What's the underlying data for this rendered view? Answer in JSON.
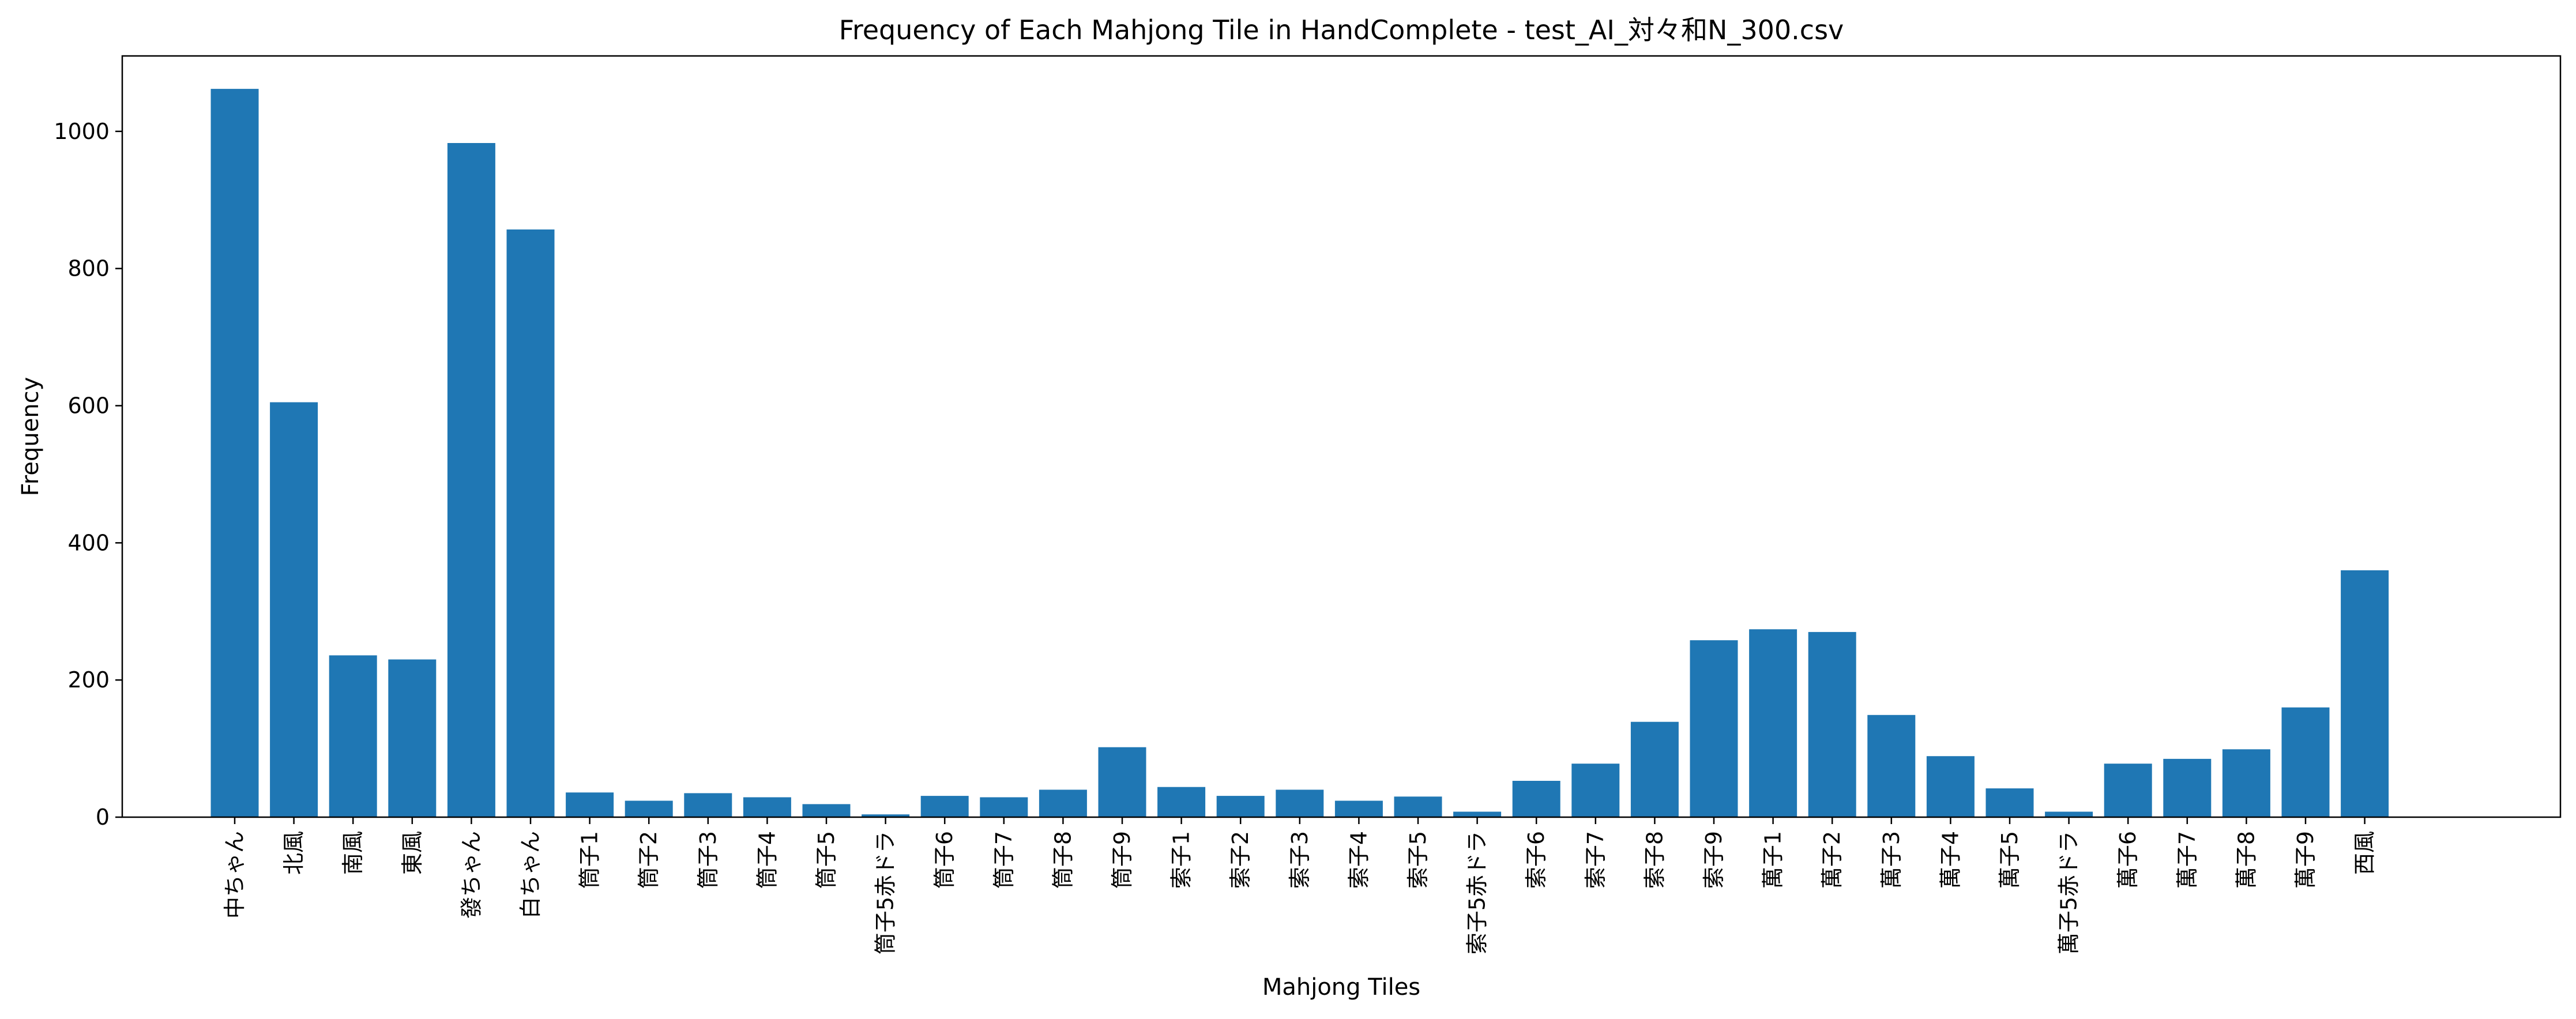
{
  "chart_data": {
    "type": "bar",
    "title": "Frequency of Each Mahjong Tile in HandComplete - test_AI_対々和N_300.csv",
    "xlabel": "Mahjong Tiles",
    "ylabel": "Frequency",
    "ylim": [
      0,
      1110
    ],
    "yticks": [
      0,
      200,
      400,
      600,
      800,
      1000
    ],
    "grid": false,
    "legend": "none",
    "bar_color": "#1f77b4",
    "categories": [
      "中ちゃん",
      "北風",
      "南風",
      "東風",
      "發ちゃん",
      "白ちゃん",
      "筒子1",
      "筒子2",
      "筒子3",
      "筒子4",
      "筒子5",
      "筒子5赤ドラ",
      "筒子6",
      "筒子7",
      "筒子8",
      "筒子9",
      "索子1",
      "索子2",
      "索子3",
      "索子4",
      "索子5",
      "索子5赤ドラ",
      "索子6",
      "索子7",
      "索子8",
      "索子9",
      "萬子1",
      "萬子2",
      "萬子3",
      "萬子4",
      "萬子5",
      "萬子5赤ドラ",
      "萬子6",
      "萬子7",
      "萬子8",
      "萬子9",
      "西風"
    ],
    "values": [
      1062,
      605,
      236,
      230,
      983,
      857,
      36,
      24,
      35,
      29,
      19,
      4,
      31,
      29,
      40,
      102,
      44,
      31,
      40,
      24,
      30,
      8,
      53,
      78,
      139,
      258,
      274,
      270,
      149,
      89,
      42,
      8,
      78,
      85,
      99,
      160,
      360
    ]
  }
}
